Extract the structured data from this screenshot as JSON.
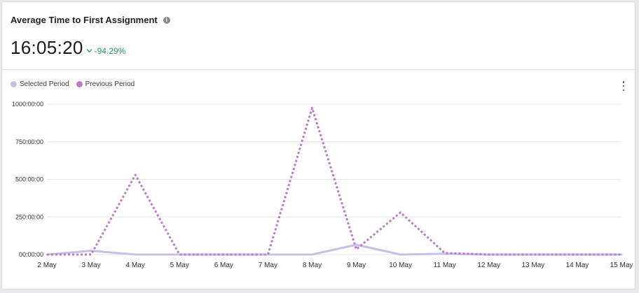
{
  "card": {
    "title": "Average Time to First Assignment",
    "info_icon": "info-icon",
    "metric_value": "16:05:20",
    "change_value": "-94.29%",
    "change_icon": "chevron-down-icon",
    "change_color": "#1f9d63",
    "menu_icon": "kebab-menu-icon"
  },
  "legend": [
    {
      "label": "Selected Period",
      "color": "#c6c0e4"
    },
    {
      "label": "Previous Period",
      "color": "#b97ac6"
    }
  ],
  "chart_data": {
    "type": "line",
    "x": [
      "2 May",
      "3 May",
      "4 May",
      "5 May",
      "6 May",
      "7 May",
      "8 May",
      "9 May",
      "10 May",
      "11 May",
      "12 May",
      "13 May",
      "14 May",
      "15 May"
    ],
    "y_ticks": [
      "00:00:00",
      "250:00:00",
      "500:00:00",
      "750:00:00",
      "1000:00:00"
    ],
    "y_tick_values": [
      0,
      250,
      500,
      750,
      1000
    ],
    "ylim": [
      0,
      1000
    ],
    "series": [
      {
        "name": "Selected Period",
        "color": "#c6c0e4",
        "style": "solid",
        "values": [
          0,
          25,
          0,
          0,
          0,
          0,
          0,
          65,
          0,
          5,
          0,
          0,
          0,
          0
        ]
      },
      {
        "name": "Previous Period",
        "color": "#b97ac6",
        "style": "dotted",
        "values": [
          0,
          0,
          530,
          0,
          0,
          0,
          975,
          35,
          280,
          10,
          0,
          0,
          0,
          0
        ]
      }
    ],
    "grid": true,
    "legend_position": "top-left"
  }
}
